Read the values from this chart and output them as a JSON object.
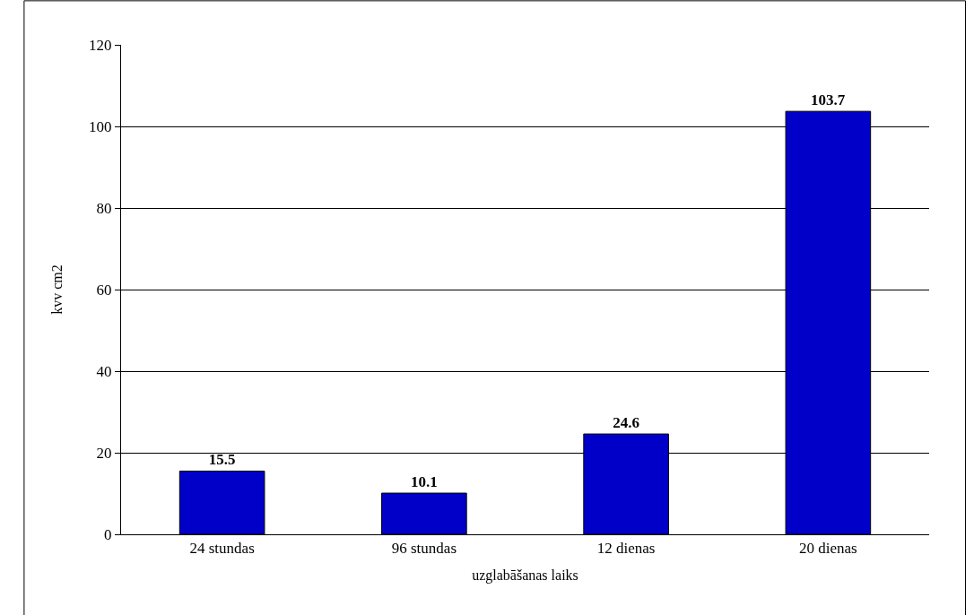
{
  "chart_data": {
    "type": "bar",
    "xlabel": "uzglabāšanas laiks",
    "ylabel": "kvv cm2",
    "categories": [
      "24 stundas",
      "96 stundas",
      "12 dienas",
      "20 dienas"
    ],
    "values": [
      15.5,
      10.1,
      24.6,
      103.7
    ],
    "color": "#0000c8",
    "ylim": [
      0,
      120
    ],
    "yticks": [
      0,
      20,
      40,
      60,
      80,
      100,
      120
    ],
    "grid": "y",
    "data_labels": true,
    "legend": false
  }
}
